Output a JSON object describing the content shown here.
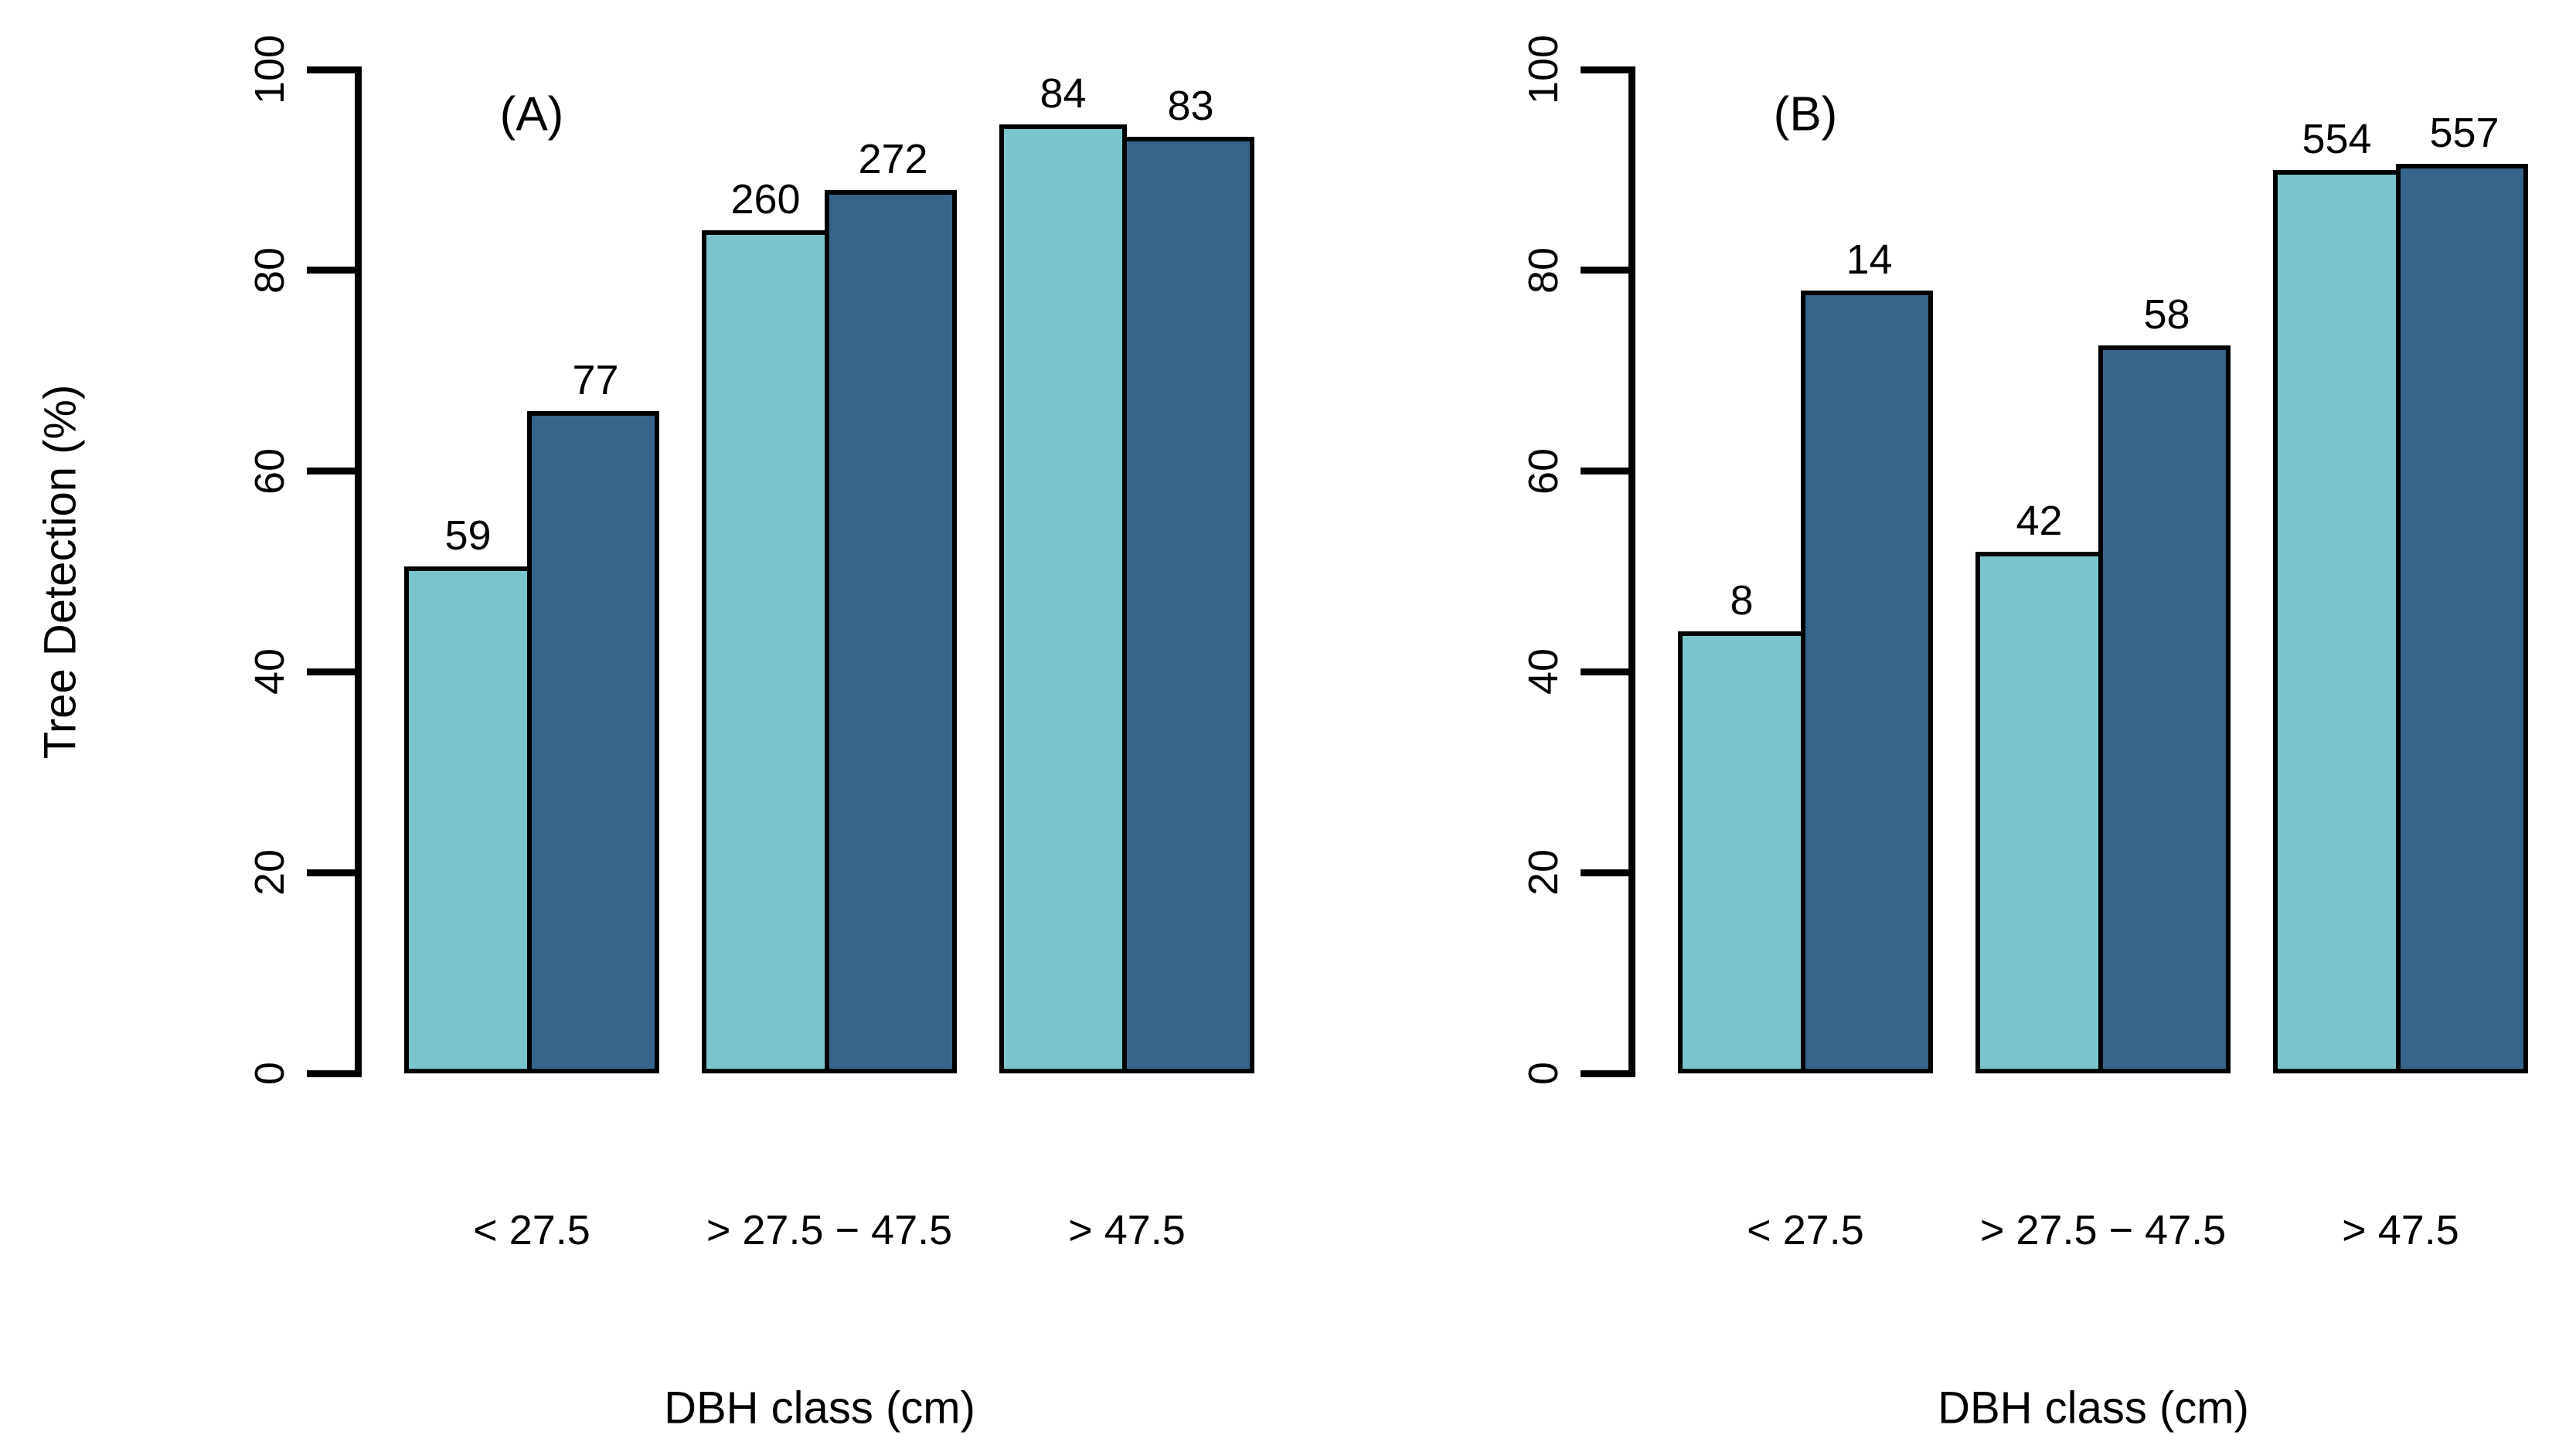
{
  "figure": {
    "background": "#ffffff",
    "y_axis_title": "Tree Detection (%)",
    "x_axis_title": "DBH class (cm)"
  },
  "colors": {
    "light_bar": "#7AC5CD",
    "dark_bar": "#36648B",
    "axis": "#000000",
    "text": "#000000"
  },
  "chart_data": [
    {
      "type": "bar",
      "panel_label": "(A)",
      "xlabel": "DBH class (cm)",
      "ylabel": "Tree Detection (%)",
      "ylim": [
        0,
        100
      ],
      "yticks": [
        0,
        20,
        40,
        60,
        80,
        100
      ],
      "grid": "off",
      "legend": "none",
      "categories": [
        "< 27.5",
        "> 27.5 − 47.5",
        "> 47.5"
      ],
      "series": [
        {
          "name": "light-teal",
          "color": "#7AC5CD",
          "values_percent": [
            50.5,
            84,
            94.5
          ],
          "bar_count_labels": [
            "59",
            "260",
            "84"
          ]
        },
        {
          "name": "dark-blue",
          "color": "#36648B",
          "values_percent": [
            66,
            88,
            93.3
          ],
          "bar_count_labels": [
            "77",
            "272",
            "83"
          ]
        }
      ]
    },
    {
      "type": "bar",
      "panel_label": "(B)",
      "xlabel": "DBH class (cm)",
      "ylabel": "Tree Detection (%)",
      "ylim": [
        0,
        100
      ],
      "yticks": [
        0,
        20,
        40,
        60,
        80,
        100
      ],
      "grid": "off",
      "legend": "none",
      "categories": [
        "< 27.5",
        "> 27.5 − 47.5",
        "> 47.5"
      ],
      "series": [
        {
          "name": "light-teal",
          "color": "#7AC5CD",
          "values_percent": [
            44,
            52,
            90
          ],
          "bar_count_labels": [
            "8",
            "42",
            "554"
          ]
        },
        {
          "name": "dark-blue",
          "color": "#36648B",
          "values_percent": [
            78,
            72.5,
            90.6
          ],
          "bar_count_labels": [
            "14",
            "58",
            "557"
          ]
        }
      ]
    }
  ]
}
